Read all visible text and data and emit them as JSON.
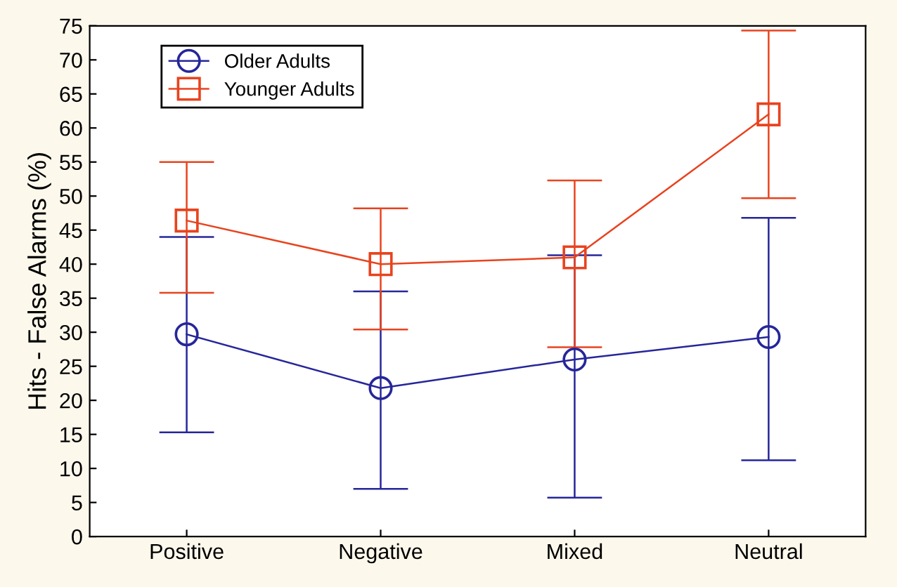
{
  "chart_data": {
    "type": "line",
    "ylabel": "Hits - False Alarms (%)",
    "categories": [
      "Positive",
      "Negative",
      "Mixed",
      "Neutral"
    ],
    "series": [
      {
        "name": "Older Adults",
        "color": "#26269a",
        "values": [
          29.7,
          21.8,
          26,
          29.3
        ],
        "errors": [
          [
            15.3,
            44
          ],
          [
            7,
            36
          ],
          [
            5.7,
            41.3
          ],
          [
            11.2,
            46.8
          ]
        ],
        "marker": "circle"
      },
      {
        "name": "Younger Adults",
        "color": "#e8431e",
        "values": [
          46.4,
          40,
          41,
          62
        ],
        "errors": [
          [
            35.8,
            55
          ],
          [
            30.4,
            48.2
          ],
          [
            27.8,
            52.3
          ],
          [
            49.7,
            74.3
          ]
        ],
        "marker": "square"
      }
    ],
    "ylim": [
      0,
      75
    ],
    "yticks": [
      0,
      5,
      10,
      15,
      20,
      25,
      30,
      35,
      40,
      45,
      50,
      55,
      60,
      65,
      70,
      75
    ],
    "grid": false,
    "legend": "top left",
    "line_style": "solid"
  }
}
